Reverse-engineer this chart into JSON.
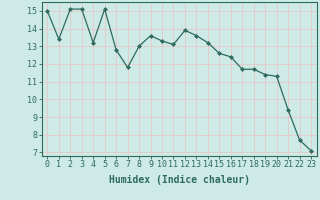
{
  "x": [
    0,
    1,
    2,
    3,
    4,
    5,
    6,
    7,
    8,
    9,
    10,
    11,
    12,
    13,
    14,
    15,
    16,
    17,
    18,
    19,
    20,
    21,
    22,
    23
  ],
  "y": [
    15.0,
    13.4,
    15.1,
    15.1,
    13.2,
    15.1,
    12.8,
    11.8,
    13.0,
    13.6,
    13.3,
    13.1,
    13.9,
    13.6,
    13.2,
    12.6,
    12.4,
    11.7,
    11.7,
    11.4,
    11.3,
    9.4,
    7.7,
    7.1
  ],
  "line_color": "#2e6b5e",
  "marker": "D",
  "marker_size": 2.0,
  "bg_color": "#ceeae6",
  "grid_color": "#e8c8c8",
  "xlabel": "Humidex (Indice chaleur)",
  "xlabel_fontsize": 7,
  "tick_label_fontsize": 6,
  "ylim": [
    6.8,
    15.5
  ],
  "xlim": [
    -0.5,
    23.5
  ],
  "yticks": [
    7,
    8,
    9,
    10,
    11,
    12,
    13,
    14,
    15
  ],
  "xticks": [
    0,
    1,
    2,
    3,
    4,
    5,
    6,
    7,
    8,
    9,
    10,
    11,
    12,
    13,
    14,
    15,
    16,
    17,
    18,
    19,
    20,
    21,
    22,
    23
  ]
}
